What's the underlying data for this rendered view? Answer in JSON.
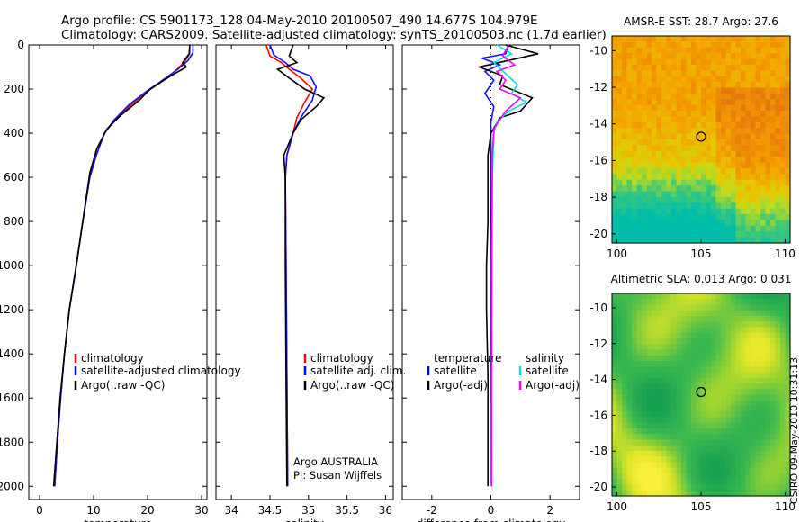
{
  "header": {
    "line1": "Argo profile: CS 5901173_128 04-May-2010 20100507_490 14.677S 104.979E",
    "line2": "Climatology: CARS2009. Satellite-adjusted climatology: synTS_20100503.nc (1.7d earlier)"
  },
  "footer_text": "CSIRO 09-May-2010 10:31:13",
  "colors": {
    "climatology": "#ff0000",
    "satellite": "#0000ff",
    "argo": "#000000",
    "sat_salinity": "#00e5e5",
    "argo_salinity": "#ff00ff"
  },
  "chart_data": [
    {
      "type": "line",
      "xlabel": "temperature",
      "ylabel": "",
      "xlim": [
        -2,
        31
      ],
      "ylim": [
        2060,
        0
      ],
      "xticks": [
        0,
        10,
        20,
        30
      ],
      "yticks": [
        0,
        200,
        400,
        600,
        800,
        1000,
        1200,
        1400,
        1600,
        1800,
        2000
      ],
      "legend": [
        "climatology",
        "satellite-adjusted climatology",
        "Argo(..raw -QC)"
      ],
      "series": [
        {
          "name": "climatology",
          "color": "red",
          "points": [
            [
              27.8,
              0
            ],
            [
              27.8,
              40
            ],
            [
              27,
              70
            ],
            [
              25.5,
              110
            ],
            [
              23,
              160
            ],
            [
              20,
              210
            ],
            [
              17,
              270
            ],
            [
              14,
              340
            ],
            [
              12,
              400
            ],
            [
              10.5,
              500
            ],
            [
              9.3,
              600
            ],
            [
              8,
              800
            ],
            [
              6.8,
              1000
            ],
            [
              5.5,
              1200
            ],
            [
              4.6,
              1400
            ],
            [
              3.9,
              1600
            ],
            [
              3.3,
              1800
            ],
            [
              2.8,
              2000
            ]
          ]
        },
        {
          "name": "satellite-adjusted climatology",
          "color": "blue",
          "points": [
            [
              28.4,
              0
            ],
            [
              28.4,
              35
            ],
            [
              27.5,
              70
            ],
            [
              25.6,
              110
            ],
            [
              22.8,
              160
            ],
            [
              19.8,
              210
            ],
            [
              16.6,
              270
            ],
            [
              13.8,
              340
            ],
            [
              12,
              400
            ],
            [
              10.5,
              500
            ],
            [
              9.3,
              600
            ],
            [
              8,
              800
            ],
            [
              6.8,
              1000
            ],
            [
              5.5,
              1200
            ],
            [
              4.6,
              1400
            ],
            [
              3.9,
              1600
            ],
            [
              3.3,
              1800
            ],
            [
              2.8,
              2000
            ]
          ]
        },
        {
          "name": "Argo(..raw -QC)",
          "color": "black",
          "points": [
            [
              27.8,
              0
            ],
            [
              27.7,
              40
            ],
            [
              26.5,
              80
            ],
            [
              27.2,
              100
            ],
            [
              25,
              130
            ],
            [
              23,
              160
            ],
            [
              20.5,
              200
            ],
            [
              18.5,
              250
            ],
            [
              15,
              320
            ],
            [
              12.5,
              380
            ],
            [
              10.6,
              470
            ],
            [
              9.3,
              580
            ],
            [
              8,
              800
            ],
            [
              6.8,
              1000
            ],
            [
              5.5,
              1200
            ],
            [
              4.6,
              1400
            ],
            [
              3.8,
              1600
            ],
            [
              3.2,
              1800
            ],
            [
              2.6,
              2000
            ]
          ]
        }
      ]
    },
    {
      "type": "line",
      "xlabel": "salinity",
      "xlim": [
        33.8,
        36.1
      ],
      "ylim": [
        2060,
        0
      ],
      "xticks": [
        34,
        34.5,
        35,
        35.5,
        36
      ],
      "legend": [
        "climatology",
        "satellite adj. clim.",
        "Argo(..raw -QC)"
      ],
      "annotation": [
        "Argo AUSTRALIA",
        "PI: Susan Wijffels"
      ],
      "series": [
        {
          "name": "climatology",
          "color": "red",
          "points": [
            [
              34.45,
              0
            ],
            [
              34.5,
              50
            ],
            [
              34.65,
              80
            ],
            [
              34.75,
              110
            ],
            [
              34.9,
              150
            ],
            [
              35.05,
              200
            ],
            [
              34.95,
              260
            ],
            [
              34.85,
              330
            ],
            [
              34.8,
              400
            ],
            [
              34.72,
              500
            ],
            [
              34.7,
              600
            ],
            [
              34.71,
              1000
            ],
            [
              34.72,
              1500
            ],
            [
              34.73,
              2000
            ]
          ]
        },
        {
          "name": "satellite adj. clim.",
          "color": "blue",
          "points": [
            [
              34.5,
              0
            ],
            [
              34.55,
              45
            ],
            [
              34.7,
              80
            ],
            [
              34.8,
              110
            ],
            [
              35.02,
              140
            ],
            [
              35.1,
              190
            ],
            [
              35.05,
              250
            ],
            [
              34.9,
              330
            ],
            [
              34.8,
              400
            ],
            [
              34.72,
              500
            ],
            [
              34.7,
              600
            ],
            [
              34.71,
              1000
            ],
            [
              34.72,
              1500
            ],
            [
              34.73,
              2000
            ]
          ]
        },
        {
          "name": "Argo(..raw -QC)",
          "color": "black",
          "points": [
            [
              34.8,
              0
            ],
            [
              34.75,
              50
            ],
            [
              34.85,
              80
            ],
            [
              34.6,
              110
            ],
            [
              34.75,
              150
            ],
            [
              34.95,
              200
            ],
            [
              35.2,
              240
            ],
            [
              35.1,
              280
            ],
            [
              34.9,
              340
            ],
            [
              34.8,
              400
            ],
            [
              34.68,
              500
            ],
            [
              34.7,
              600
            ],
            [
              34.7,
              1000
            ],
            [
              34.71,
              1500
            ],
            [
              34.72,
              2000
            ]
          ]
        }
      ]
    },
    {
      "type": "line",
      "xlabel": "difference from climatology",
      "xlim": [
        -3,
        3
      ],
      "ylim": [
        2060,
        0
      ],
      "xticks": [
        -2,
        0,
        2
      ],
      "legend": [
        "temperature",
        "satellite",
        "Argo(-adj)",
        "salinity",
        "satellite",
        "Argo(-adj)"
      ],
      "series": [
        {
          "name": "temperature satellite",
          "color": "blue",
          "points": [
            [
              0.6,
              0
            ],
            [
              0.5,
              40
            ],
            [
              -0.3,
              60
            ],
            [
              0.3,
              90
            ],
            [
              -0.2,
              120
            ],
            [
              0.1,
              160
            ],
            [
              -0.2,
              220
            ],
            [
              0.1,
              280
            ],
            [
              0,
              350
            ],
            [
              0,
              400
            ],
            [
              0,
              500
            ],
            [
              0,
              2000
            ]
          ]
        },
        {
          "name": "temperature Argo(-adj)",
          "color": "black",
          "points": [
            [
              0.5,
              0
            ],
            [
              1.6,
              40
            ],
            [
              0.6,
              70
            ],
            [
              -0.4,
              100
            ],
            [
              0.4,
              140
            ],
            [
              0.3,
              180
            ],
            [
              1.4,
              240
            ],
            [
              1.0,
              300
            ],
            [
              0.3,
              330
            ],
            [
              0,
              400
            ],
            [
              -0.1,
              500
            ],
            [
              -0.1,
              800
            ],
            [
              -0.15,
              1000
            ],
            [
              -0.15,
              1200
            ],
            [
              -0.1,
              1500
            ],
            [
              -0.1,
              2000
            ]
          ]
        },
        {
          "name": "salinity satellite",
          "color": "cyan",
          "points": [
            [
              0.2,
              0
            ],
            [
              0.7,
              40
            ],
            [
              0.1,
              80
            ],
            [
              0.5,
              130
            ],
            [
              0.9,
              180
            ],
            [
              0.7,
              220
            ],
            [
              1.2,
              260
            ],
            [
              0.6,
              300
            ],
            [
              0.2,
              350
            ],
            [
              0.1,
              400
            ],
            [
              0.05,
              600
            ],
            [
              0.03,
              1000
            ],
            [
              0.02,
              1500
            ],
            [
              0.01,
              2000
            ]
          ]
        },
        {
          "name": "salinity Argo(-adj)",
          "color": "magenta",
          "points": [
            [
              0.6,
              0
            ],
            [
              0.4,
              50
            ],
            [
              0.8,
              90
            ],
            [
              0.2,
              120
            ],
            [
              0.5,
              160
            ],
            [
              0.3,
              200
            ],
            [
              1.0,
              240
            ],
            [
              0.5,
              300
            ],
            [
              0.1,
              380
            ],
            [
              0.05,
              500
            ],
            [
              0.04,
              800
            ],
            [
              0.03,
              1000
            ],
            [
              0.02,
              1500
            ],
            [
              0.02,
              2000
            ]
          ]
        }
      ]
    },
    {
      "type": "heatmap",
      "title": "AMSR-E SST: 28.7 Argo: 27.6",
      "xlim": [
        99.7,
        110.3
      ],
      "ylim": [
        -20.5,
        -9.2
      ],
      "xticks": [
        100,
        105,
        110
      ],
      "yticks": [
        -10,
        -12,
        -14,
        -16,
        -18,
        -20
      ],
      "marker": [
        105,
        -14.7
      ]
    },
    {
      "type": "heatmap",
      "title": "Altimetric SLA: 0.013 Argo: 0.031",
      "xlim": [
        99.7,
        110.3
      ],
      "ylim": [
        -20.5,
        -9.2
      ],
      "xticks": [
        100,
        105,
        110
      ],
      "yticks": [
        -10,
        -12,
        -14,
        -16,
        -18,
        -20
      ],
      "marker": [
        105,
        -14.7
      ]
    }
  ]
}
